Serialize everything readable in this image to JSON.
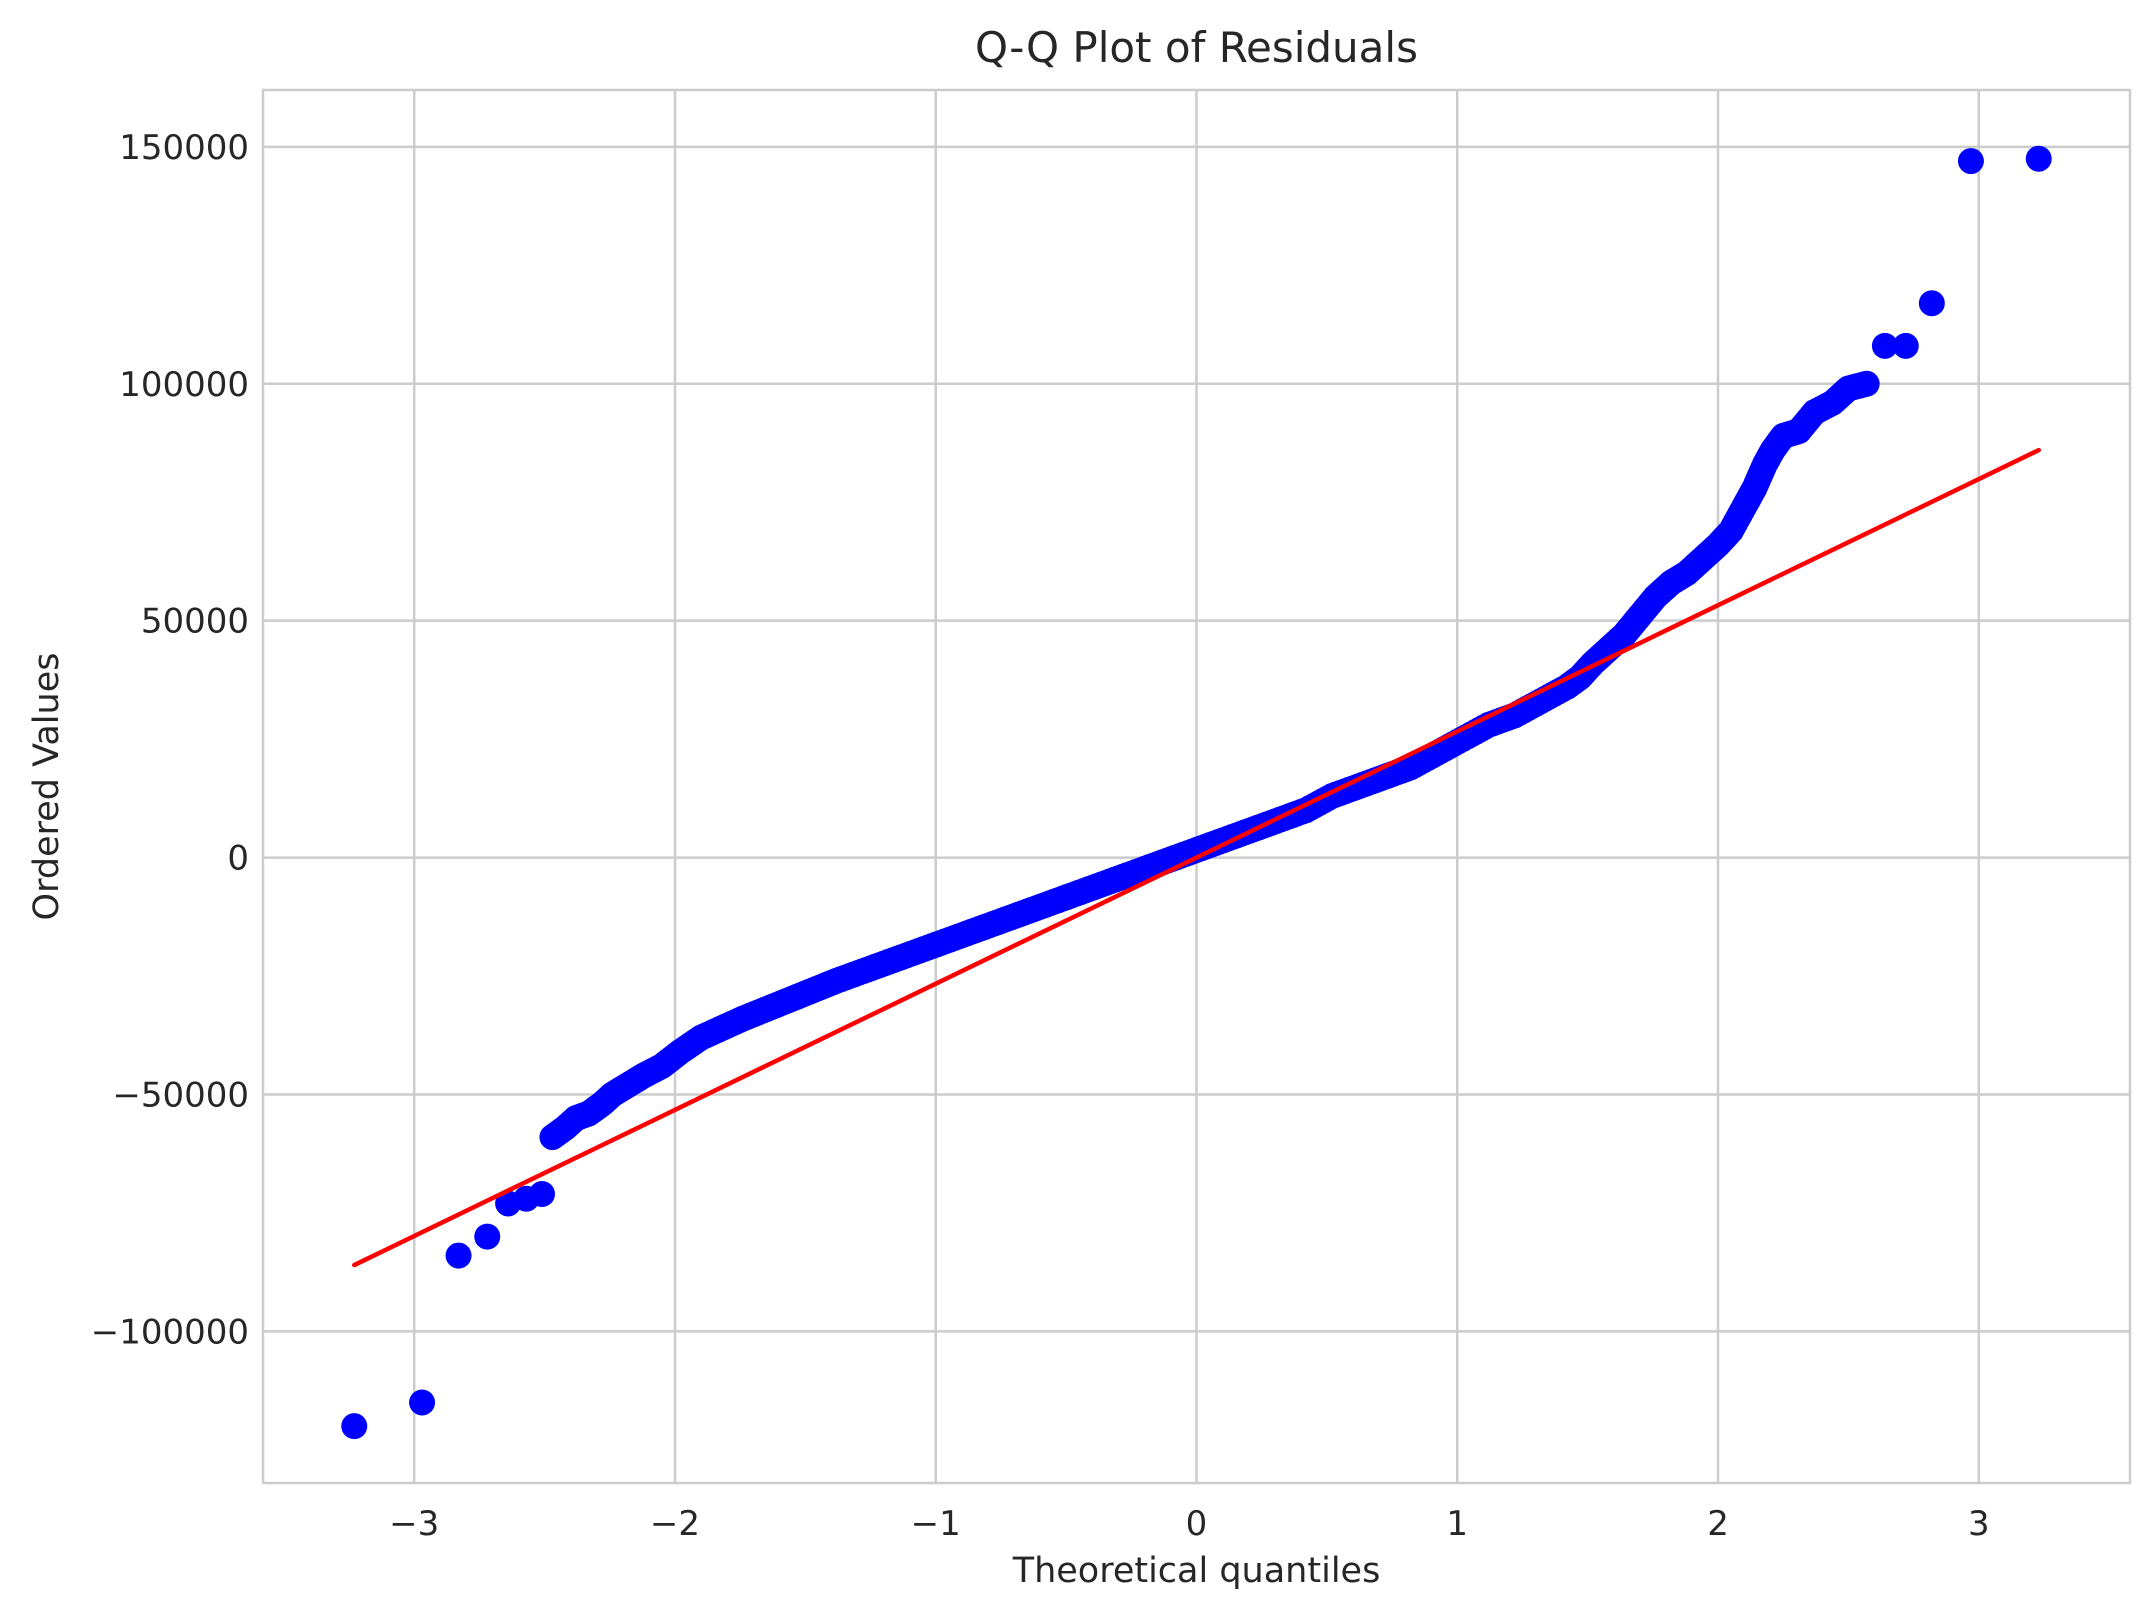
{
  "chart_data": {
    "type": "scatter",
    "title": "Q-Q Plot of Residuals",
    "xlabel": "Theoretical quantiles",
    "ylabel": "Ordered Values",
    "xlim": [
      -3.58,
      3.58
    ],
    "ylim": [
      -132000,
      162000
    ],
    "xticks": [
      -3,
      -2,
      -1,
      0,
      1,
      2,
      3
    ],
    "xtick_labels": [
      "−3",
      "−2",
      "−1",
      "0",
      "1",
      "2",
      "3"
    ],
    "yticks": [
      -100000,
      -50000,
      0,
      50000,
      100000,
      150000
    ],
    "ytick_labels": [
      "−100000",
      "−50000",
      "0",
      "50000",
      "100000",
      "150000"
    ],
    "grid": true,
    "point_color": "#0000ff",
    "line_color": "#ff0000",
    "fit_line": {
      "x": [
        -3.23,
        3.23
      ],
      "y": [
        -86000,
        86000
      ]
    },
    "points": {
      "x": [
        -3.23,
        -2.97,
        -2.83,
        -2.72,
        -2.64,
        -2.57,
        -2.51,
        -2.47,
        -2.42,
        -2.38,
        -2.33,
        -2.28,
        -2.24,
        -2.18,
        -2.12,
        -2.05,
        -1.98,
        -1.9,
        -1.82,
        -1.74,
        -1.65,
        -1.56,
        -1.47,
        -1.38,
        -1.28,
        -1.18,
        -1.08,
        -0.98,
        -0.88,
        -0.78,
        -0.68,
        -0.58,
        -0.48,
        -0.38,
        -0.28,
        -0.18,
        -0.08,
        0.02,
        0.12,
        0.22,
        0.32,
        0.42,
        0.52,
        0.62,
        0.72,
        0.82,
        0.92,
        1.02,
        1.12,
        1.22,
        1.32,
        1.42,
        1.47,
        1.52,
        1.58,
        1.64,
        1.7,
        1.76,
        1.82,
        1.88,
        1.94,
        2.0,
        2.05,
        2.1,
        2.14,
        2.18,
        2.21,
        2.25,
        2.31,
        2.37,
        2.44,
        2.5,
        2.57,
        2.64,
        2.72,
        2.82,
        2.97,
        3.23
      ],
      "y": [
        -120000,
        -115000,
        -84000,
        -80000,
        -73000,
        -72000,
        -71000,
        -59000,
        -57000,
        -55000,
        -54000,
        -52000,
        -50000,
        -48000,
        -46000,
        -44000,
        -41000,
        -38000,
        -36000,
        -34000,
        -32000,
        -30000,
        -28000,
        -26000,
        -24000,
        -22000,
        -20000,
        -18000,
        -16000,
        -14000,
        -12000,
        -10000,
        -8000,
        -6000,
        -4000,
        -2000,
        0,
        2000,
        4000,
        6000,
        8000,
        10000,
        13000,
        15000,
        17000,
        19000,
        22000,
        25000,
        28000,
        30000,
        33000,
        36000,
        38000,
        41000,
        44000,
        47000,
        51000,
        55000,
        58000,
        60000,
        63000,
        66000,
        69000,
        74000,
        78000,
        83000,
        86000,
        89000,
        90000,
        94000,
        96000,
        99000,
        100000,
        108000,
        108000,
        117000,
        147000,
        147500
      ]
    }
  }
}
